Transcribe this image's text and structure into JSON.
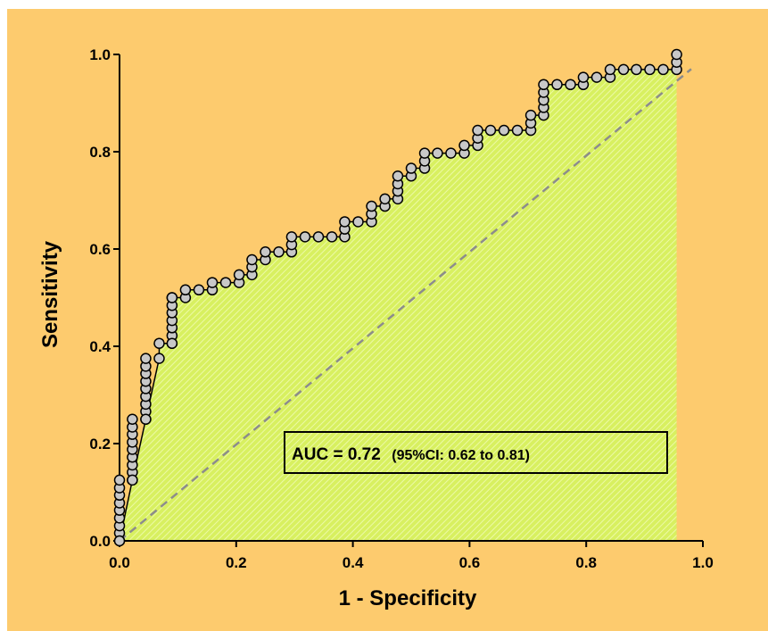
{
  "chart_data": {
    "type": "line",
    "title": "",
    "xlabel": "1 - Specificity",
    "ylabel": "Sensitivity",
    "xlim": [
      0.0,
      1.0
    ],
    "ylim": [
      0.0,
      1.0
    ],
    "x_ticks": [
      "0.0",
      "0.2",
      "0.4",
      "0.6",
      "0.8",
      "1.0"
    ],
    "y_ticks": [
      "0.0",
      "0.2",
      "0.4",
      "0.6",
      "0.8",
      "1.0"
    ],
    "grid": false,
    "colors": {
      "background": "#FDCB6E",
      "area_fill": "#D8F060",
      "area_hatch": "#ECF9A6",
      "marker_fill": "#C8C8C8",
      "marker_edge": "#000000",
      "reference_line": "#8C8C8C"
    },
    "annotation": {
      "main": "AUC = 0.72",
      "ci": "(95%CI: 0.62 to 0.81)"
    },
    "reference_line": {
      "x": [
        0.0,
        0.98
      ],
      "y": [
        0.0,
        0.97
      ],
      "style": "dashed"
    },
    "series": [
      {
        "x": [
          0.0,
          0.0,
          0.0,
          0.0,
          0.0,
          0.0,
          0.0,
          0.0,
          0.0,
          0.0,
          0.022,
          0.022,
          0.022,
          0.022,
          0.022,
          0.022,
          0.022,
          0.022,
          0.022,
          0.022,
          0.045,
          0.045,
          0.045,
          0.045,
          0.045,
          0.045,
          0.045,
          0.045,
          0.045,
          0.045,
          0.068,
          0.068,
          0.09,
          0.09,
          0.09,
          0.09,
          0.09,
          0.09,
          0.09,
          0.09,
          0.09,
          0.113,
          0.113,
          0.136,
          0.159,
          0.159,
          0.182,
          0.205,
          0.205,
          0.227,
          0.227,
          0.227,
          0.25,
          0.25,
          0.273,
          0.295,
          0.295,
          0.295,
          0.318,
          0.341,
          0.364,
          0.386,
          0.386,
          0.386,
          0.409,
          0.432,
          0.432,
          0.432,
          0.455,
          0.455,
          0.477,
          0.477,
          0.477,
          0.477,
          0.5,
          0.5,
          0.523,
          0.523,
          0.523,
          0.545,
          0.568,
          0.591,
          0.591,
          0.614,
          0.614,
          0.614,
          0.636,
          0.659,
          0.682,
          0.705,
          0.705,
          0.705,
          0.727,
          0.727,
          0.727,
          0.727,
          0.727,
          0.75,
          0.773,
          0.795,
          0.795,
          0.818,
          0.841,
          0.841,
          0.864,
          0.886,
          0.909,
          0.932,
          0.955,
          0.955,
          0.955
        ],
        "y": [
          0.0,
          0.016,
          0.031,
          0.047,
          0.063,
          0.078,
          0.094,
          0.109,
          0.125,
          0.0,
          0.125,
          0.141,
          0.156,
          0.172,
          0.188,
          0.203,
          0.219,
          0.234,
          0.25,
          0.125,
          0.25,
          0.266,
          0.281,
          0.297,
          0.313,
          0.328,
          0.344,
          0.359,
          0.375,
          0.25,
          0.375,
          0.406,
          0.406,
          0.422,
          0.438,
          0.453,
          0.469,
          0.484,
          0.5,
          0.406,
          0.5,
          0.5,
          0.516,
          0.516,
          0.516,
          0.531,
          0.531,
          0.531,
          0.547,
          0.547,
          0.563,
          0.578,
          0.578,
          0.594,
          0.594,
          0.594,
          0.609,
          0.625,
          0.625,
          0.625,
          0.625,
          0.625,
          0.641,
          0.656,
          0.656,
          0.656,
          0.672,
          0.688,
          0.688,
          0.703,
          0.703,
          0.719,
          0.734,
          0.75,
          0.75,
          0.766,
          0.766,
          0.781,
          0.797,
          0.797,
          0.797,
          0.797,
          0.813,
          0.813,
          0.828,
          0.844,
          0.844,
          0.844,
          0.844,
          0.844,
          0.859,
          0.875,
          0.875,
          0.891,
          0.906,
          0.922,
          0.938,
          0.938,
          0.938,
          0.938,
          0.953,
          0.953,
          0.953,
          0.969,
          0.969,
          0.969,
          0.969,
          0.969,
          0.969,
          0.984,
          1.0
        ]
      }
    ]
  }
}
